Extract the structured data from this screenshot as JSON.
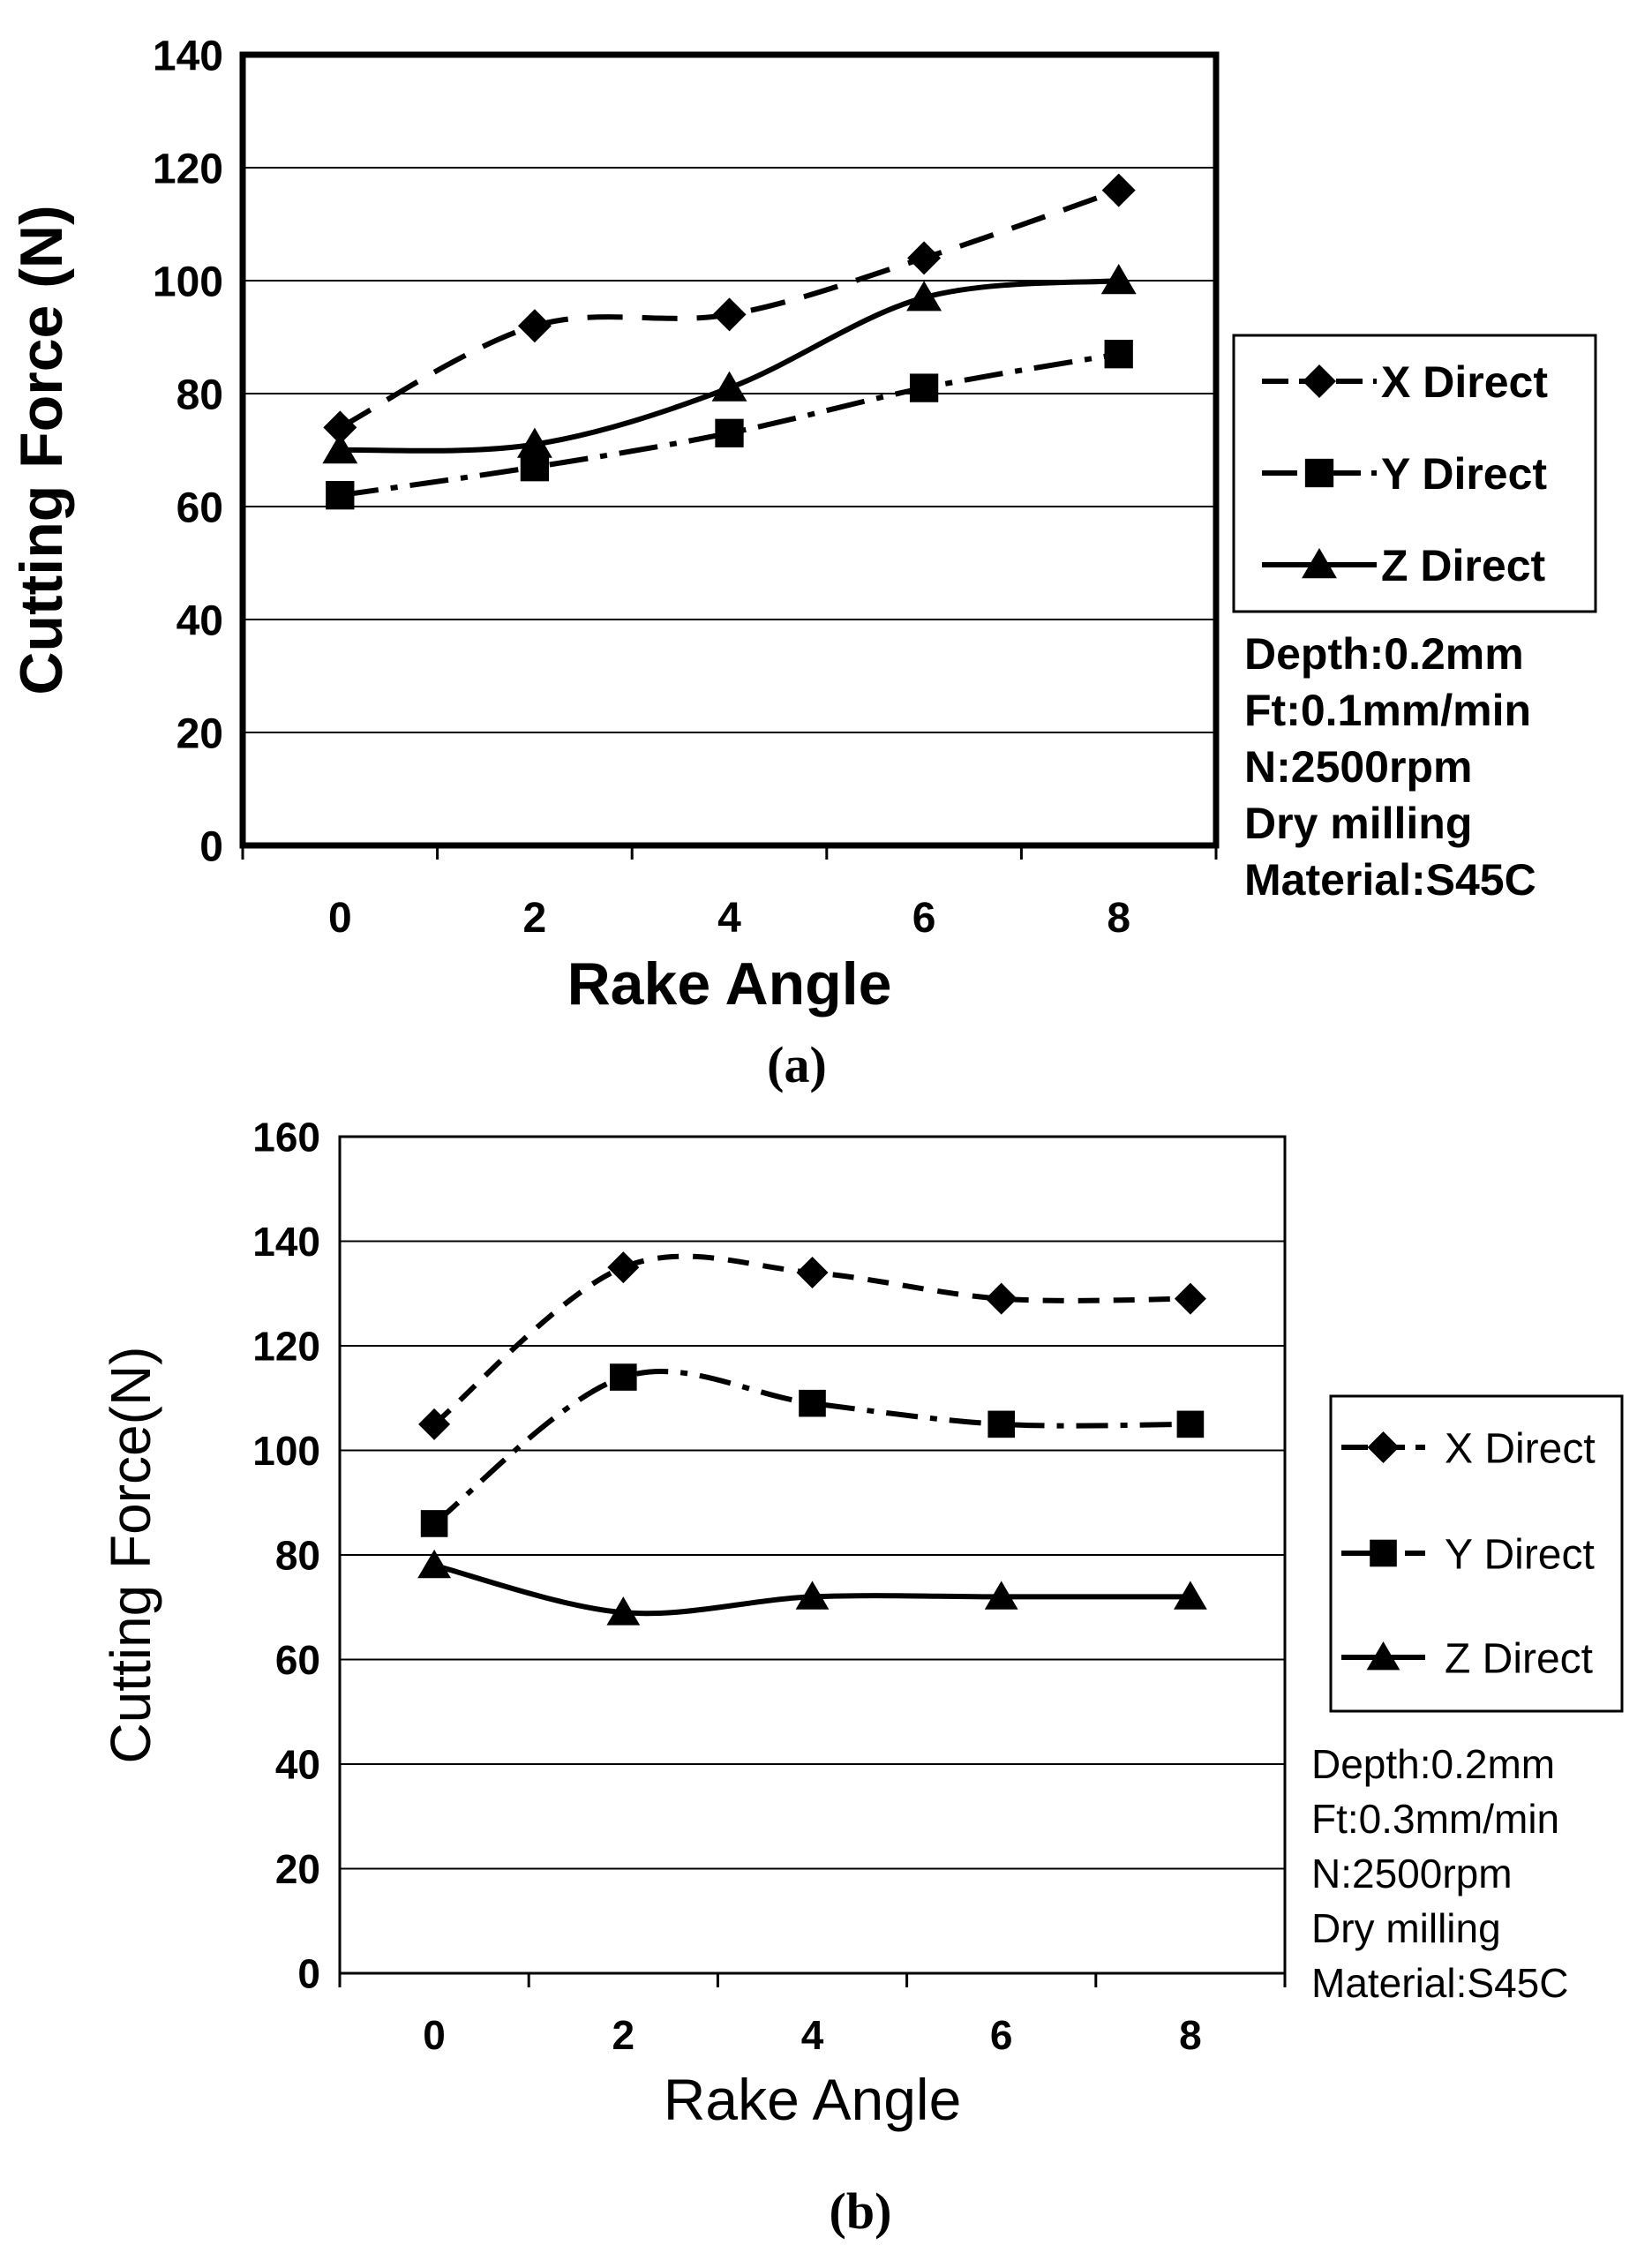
{
  "chart_data": [
    {
      "type": "line",
      "panel_label": "(a)",
      "title": "",
      "xlabel": "Rake Angle",
      "ylabel": "Cutting Force (N)",
      "categories": [
        "0",
        "2",
        "4",
        "6",
        "8"
      ],
      "x": [
        0,
        2,
        4,
        6,
        8
      ],
      "ylim": [
        0,
        140
      ],
      "yticks": [
        "0",
        "20",
        "40",
        "60",
        "80",
        "100",
        "120",
        "140"
      ],
      "grid": true,
      "legend_position": "right",
      "series": [
        {
          "name": "X Direct",
          "marker": "diamond",
          "dash": "dash",
          "values": [
            74,
            92,
            94,
            104,
            116
          ]
        },
        {
          "name": "Y Direct",
          "marker": "square",
          "dash": "dashdot",
          "values": [
            62,
            67,
            73,
            81,
            87
          ]
        },
        {
          "name": "Z Direct",
          "marker": "triangle",
          "dash": "solid",
          "values": [
            70,
            71,
            81,
            97,
            100
          ]
        }
      ],
      "annotations": [
        "Depth:0.2mm",
        "Ft:0.1mm/min",
        "N:2500rpm",
        "Dry milling",
        "Material:S45C"
      ]
    },
    {
      "type": "line",
      "panel_label": "(b)",
      "title": "",
      "xlabel": "Rake Angle",
      "ylabel": "Cutting Force(N)",
      "categories": [
        "0",
        "2",
        "4",
        "6",
        "8"
      ],
      "x": [
        0,
        2,
        4,
        6,
        8
      ],
      "ylim": [
        0,
        160
      ],
      "yticks": [
        "0",
        "20",
        "40",
        "60",
        "80",
        "100",
        "120",
        "140",
        "160"
      ],
      "grid": true,
      "legend_position": "right",
      "series": [
        {
          "name": "X Direct",
          "marker": "diamond",
          "dash": "dash",
          "values": [
            105,
            135,
            134,
            129,
            129
          ]
        },
        {
          "name": "Y Direct",
          "marker": "square",
          "dash": "dashdot",
          "values": [
            86,
            114,
            109,
            105,
            105
          ]
        },
        {
          "name": "Z Direct",
          "marker": "triangle",
          "dash": "solid",
          "values": [
            78,
            69,
            72,
            72,
            72
          ]
        }
      ],
      "annotations": [
        "Depth:0.2mm",
        "Ft:0.3mm/min",
        "N:2500rpm",
        "Dry milling",
        "Material:S45C"
      ]
    }
  ]
}
